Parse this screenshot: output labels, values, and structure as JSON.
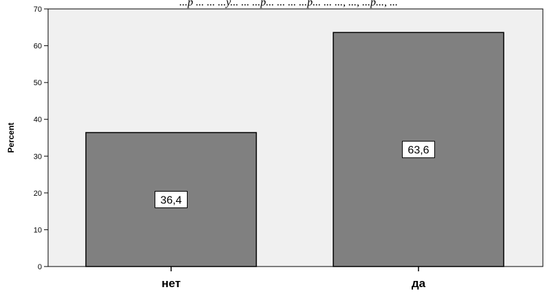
{
  "caption": "...р ... ... ...у... ... ...р... ... ... ...р... ... ..., ..., ...р..., ...",
  "chart_data": {
    "type": "bar",
    "categories": [
      "нет",
      "да"
    ],
    "values": [
      36.4,
      63.6
    ],
    "data_labels": [
      "36,4",
      "63,6"
    ],
    "title": "",
    "xlabel": "",
    "ylabel": "Percent",
    "ylim": [
      0,
      70
    ],
    "yticks": [
      0,
      10,
      20,
      30,
      40,
      50,
      60,
      70
    ],
    "grid": false,
    "colors": {
      "plot_background": "#f0f0f0",
      "bar_fill": "#808080",
      "bar_stroke": "#000000",
      "label_box": "#ffffff"
    }
  }
}
